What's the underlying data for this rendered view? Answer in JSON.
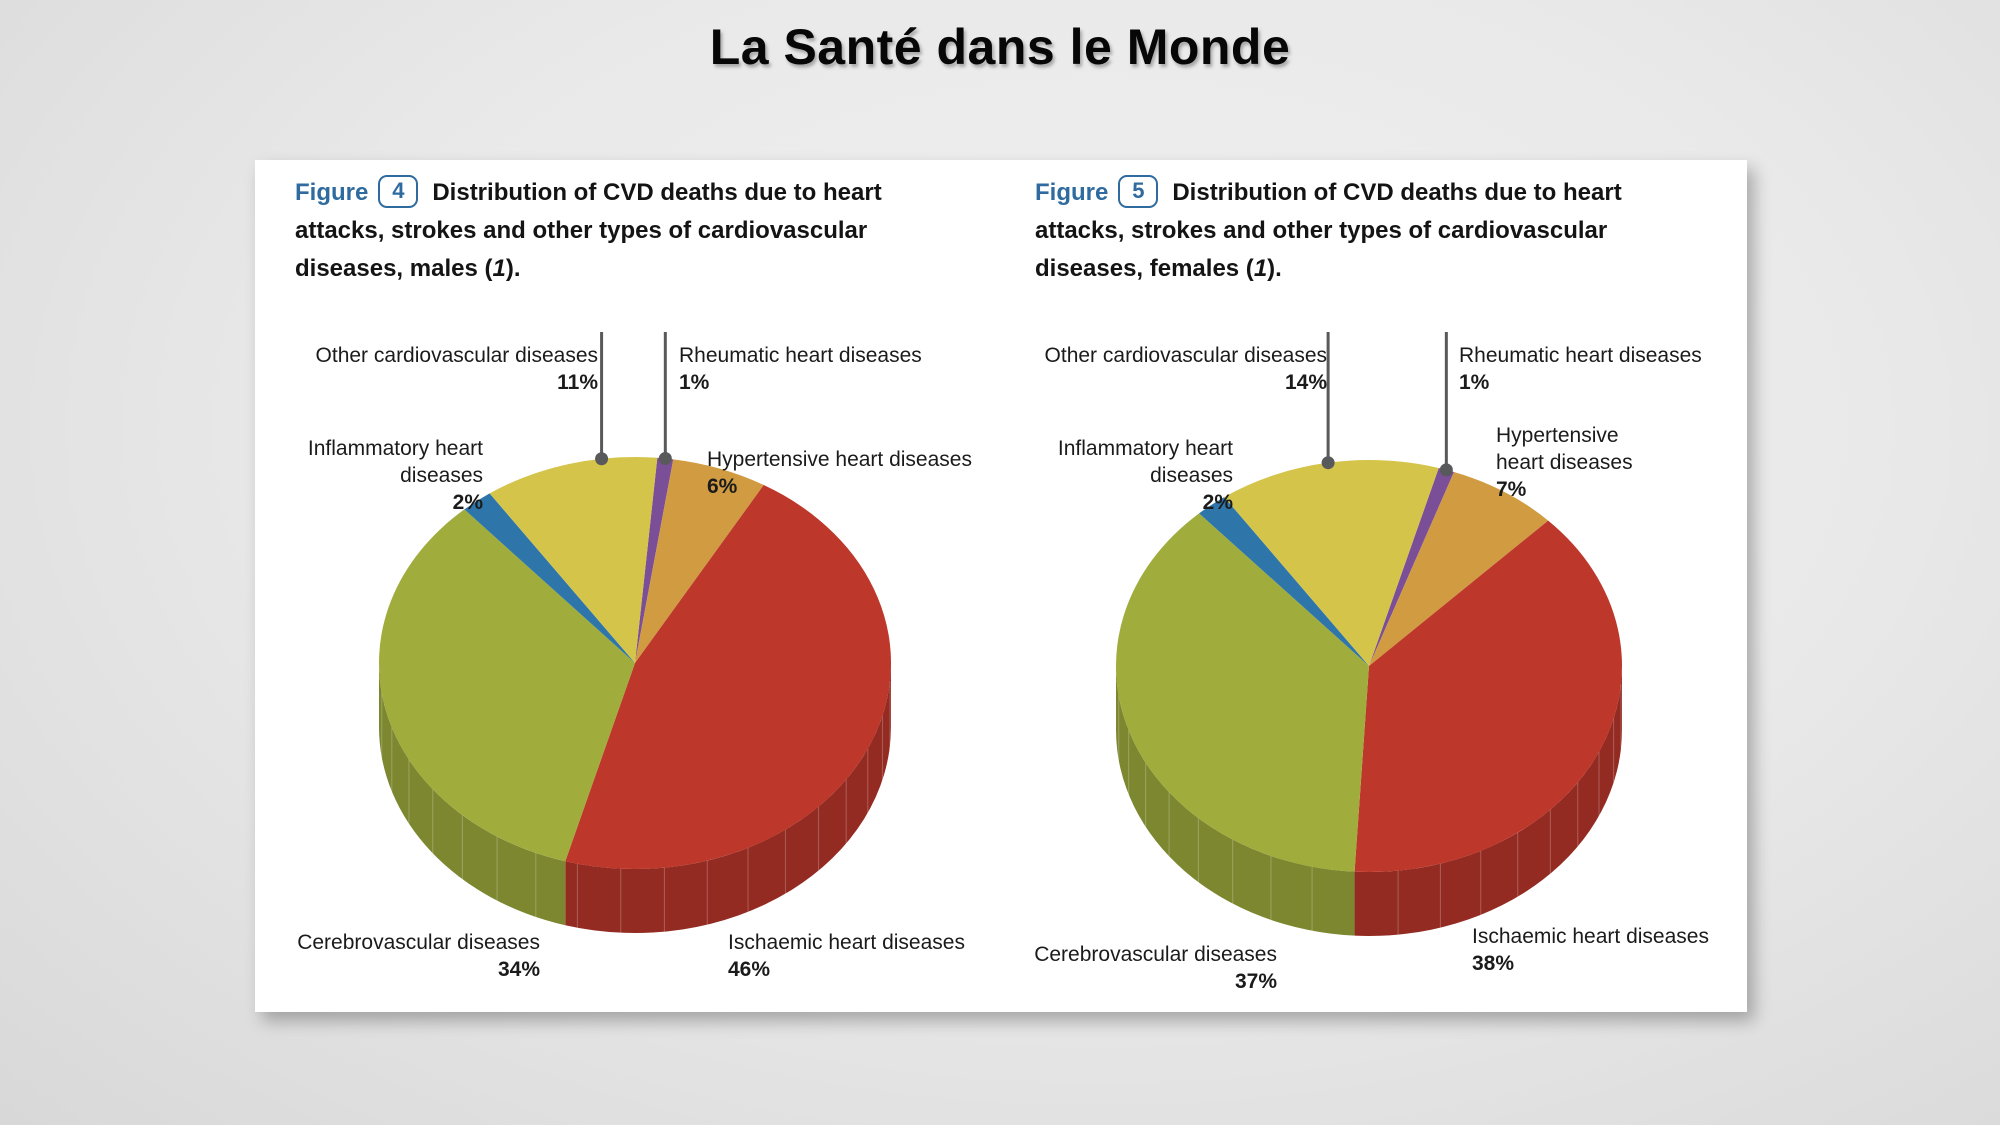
{
  "title": "La Santé dans le Monde",
  "figures": [
    {
      "label": "Figure",
      "number": "4",
      "caption_before": "Distribution of CVD deaths due to heart attacks, strokes and other types of cardiovascular diseases, males (",
      "caption_ref": "1",
      "caption_after": ")."
    },
    {
      "label": "Figure",
      "number": "5",
      "caption_before": "Distribution of CVD deaths due to heart attacks, strokes and other types of cardiovascular diseases, females (",
      "caption_ref": "1",
      "caption_after": ")."
    }
  ],
  "colors": {
    "figure_blue": "#2f6b9e",
    "leader_gray": "#58595b",
    "panel_bg": "#ffffff"
  },
  "chart_data": [
    {
      "type": "pie",
      "projection": "3d",
      "group": "Males",
      "title": "Distribution of CVD deaths due to heart attacks, strokes and other types of cardiovascular diseases, males (1).",
      "unit": "%",
      "legend_position": "callout-labels",
      "slices": [
        {
          "label": "Rheumatic heart diseases",
          "value": 1,
          "pct": "1%",
          "color": "#7b4f97"
        },
        {
          "label": "Hypertensive heart diseases",
          "value": 6,
          "pct": "6%",
          "color": "#d09b41"
        },
        {
          "label": "Ischaemic heart diseases",
          "value": 46,
          "pct": "46%",
          "color": "#bd372b"
        },
        {
          "label": "Cerebrovascular diseases",
          "value": 34,
          "pct": "34%",
          "color": "#a0ad3d"
        },
        {
          "label": "Inflammatory heart diseases",
          "value": 2,
          "pct": "2%",
          "color": "#2e75a9"
        },
        {
          "label": "Other cardiovascular diseases",
          "value": 11,
          "pct": "11%",
          "color": "#d5c44a"
        }
      ]
    },
    {
      "type": "pie",
      "projection": "3d",
      "group": "Females",
      "title": "Distribution of CVD deaths due to heart attacks, strokes and other types of cardiovascular diseases, females (1).",
      "unit": "%",
      "legend_position": "callout-labels",
      "slices": [
        {
          "label": "Rheumatic heart diseases",
          "value": 1,
          "pct": "1%",
          "color": "#7b4f97"
        },
        {
          "label": "Hypertensive heart diseases",
          "value": 7,
          "pct": "7%",
          "color": "#d09b41"
        },
        {
          "label": "Ischaemic heart diseases",
          "value": 38,
          "pct": "38%",
          "color": "#bd372b"
        },
        {
          "label": "Cerebrovascular diseases",
          "value": 37,
          "pct": "37%",
          "color": "#a0ad3d"
        },
        {
          "label": "Inflammatory heart diseases",
          "value": 2,
          "pct": "2%",
          "color": "#2e75a9"
        },
        {
          "label": "Other cardiovascular diseases",
          "value": 14,
          "pct": "14%",
          "color": "#d5c44a"
        }
      ]
    }
  ]
}
